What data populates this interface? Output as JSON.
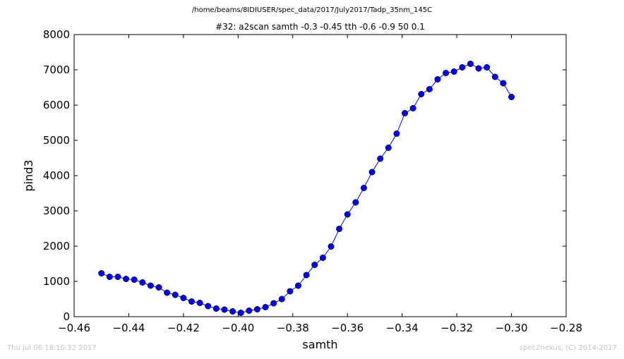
{
  "header": {
    "filepath": "/home/beams/8IDIUSER/spec_data/2017/July2017/Tadp_35nm_145C"
  },
  "footer": {
    "timestamp": "Thu Jul 06 18:10:32 2017",
    "credit": "spec2nexus, (C) 2014-2017"
  },
  "colors": {
    "series": "#0000ff",
    "footer_text": "#c4c4c4"
  },
  "chart_data": {
    "type": "line",
    "title": "#32: a2scan  samth -0.3 -0.45  tth -0.6 -0.9  50 0.1",
    "xlabel": "samth",
    "ylabel": "pind3",
    "xlim": [
      -0.46,
      -0.28
    ],
    "ylim": [
      0,
      8000
    ],
    "x_ticks": [
      -0.46,
      -0.44,
      -0.42,
      -0.4,
      -0.38,
      -0.36,
      -0.34,
      -0.32,
      -0.3,
      -0.28
    ],
    "x_tick_labels": [
      "−0.46",
      "−0.44",
      "−0.42",
      "−0.40",
      "−0.38",
      "−0.36",
      "−0.34",
      "−0.32",
      "−0.30",
      "−0.28"
    ],
    "y_ticks": [
      0,
      1000,
      2000,
      3000,
      4000,
      5000,
      6000,
      7000,
      8000
    ],
    "y_tick_labels": [
      "0",
      "1000",
      "2000",
      "3000",
      "4000",
      "5000",
      "6000",
      "7000",
      "8000"
    ],
    "grid": false,
    "marker": "circle",
    "series": [
      {
        "x": [
          -0.45,
          -0.447,
          -0.444,
          -0.441,
          -0.438,
          -0.435,
          -0.432,
          -0.429,
          -0.426,
          -0.423,
          -0.42,
          -0.417,
          -0.414,
          -0.411,
          -0.408,
          -0.405,
          -0.402,
          -0.399,
          -0.396,
          -0.393,
          -0.39,
          -0.387,
          -0.384,
          -0.381,
          -0.378,
          -0.375,
          -0.372,
          -0.369,
          -0.366,
          -0.363,
          -0.36,
          -0.357,
          -0.354,
          -0.351,
          -0.348,
          -0.345,
          -0.342,
          -0.339,
          -0.336,
          -0.333,
          -0.33,
          -0.327,
          -0.324,
          -0.321,
          -0.318,
          -0.315,
          -0.312,
          -0.309,
          -0.306,
          -0.303,
          -0.3
        ],
        "values": [
          1230,
          1130,
          1130,
          1070,
          1050,
          970,
          880,
          830,
          680,
          620,
          530,
          430,
          390,
          300,
          230,
          200,
          150,
          110,
          170,
          210,
          270,
          380,
          500,
          720,
          880,
          1180,
          1470,
          1670,
          1990,
          2490,
          2900,
          3240,
          3650,
          4100,
          4480,
          4790,
          5190,
          5770,
          5910,
          6310,
          6450,
          6730,
          6910,
          6950,
          7070,
          7170,
          7040,
          7070,
          6800,
          6620,
          6230
        ]
      }
    ]
  }
}
